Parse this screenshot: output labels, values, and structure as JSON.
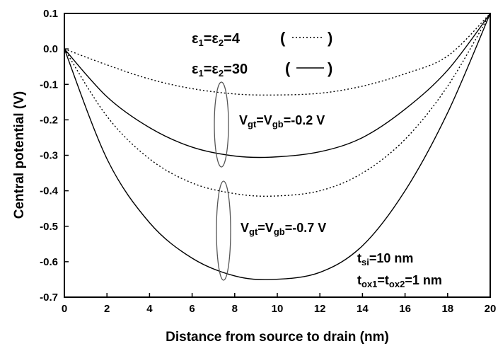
{
  "chart_data": {
    "type": "line",
    "title": "",
    "xlabel": "Distance from source to drain (nm)",
    "ylabel": "Central potential (V)",
    "xlim": [
      0,
      20
    ],
    "ylim": [
      -0.7,
      0.1
    ],
    "xticks": [
      "0",
      "2",
      "4",
      "6",
      "8",
      "10",
      "12",
      "14",
      "16",
      "18",
      "20"
    ],
    "yticks": [
      "0.1",
      "0.0",
      "-0.1",
      "-0.2",
      "-0.3",
      "-0.4",
      "-0.5",
      "-0.6",
      "-0.7"
    ],
    "grid": false,
    "series": [
      {
        "x": [
          0,
          2,
          4,
          6,
          8,
          9.8,
          12,
          14,
          16,
          18,
          20
        ],
        "values": [
          0.0,
          -0.045,
          -0.085,
          -0.112,
          -0.127,
          -0.13,
          -0.125,
          -0.105,
          -0.07,
          -0.02,
          0.1
        ],
        "style": "dotted"
      },
      {
        "x": [
          0,
          2,
          4,
          6,
          8,
          9.8,
          12,
          14,
          16,
          18,
          20
        ],
        "values": [
          0.0,
          -0.135,
          -0.222,
          -0.277,
          -0.302,
          -0.305,
          -0.29,
          -0.25,
          -0.17,
          -0.06,
          0.1
        ],
        "style": "solid"
      },
      {
        "x": [
          0,
          2,
          4,
          6,
          8,
          9.8,
          12,
          14,
          16,
          18,
          20
        ],
        "values": [
          0.0,
          -0.19,
          -0.31,
          -0.378,
          -0.408,
          -0.415,
          -0.4,
          -0.35,
          -0.255,
          -0.105,
          0.1
        ],
        "style": "dotted"
      },
      {
        "x": [
          0,
          2,
          4,
          6,
          8,
          9.8,
          12,
          14,
          16,
          18,
          20
        ],
        "values": [
          0.0,
          -0.31,
          -0.49,
          -0.59,
          -0.64,
          -0.65,
          -0.63,
          -0.555,
          -0.4,
          -0.18,
          0.1
        ],
        "style": "solid"
      }
    ],
    "annotations": {
      "legend_dotted": {
        "sym": "ε",
        "sub1": "1",
        "sub2": "2",
        "value": "=4"
      },
      "legend_solid": {
        "sym": "ε",
        "sub1": "1",
        "sub2": "2",
        "value": "=30"
      },
      "vg1": {
        "pre": "V",
        "sub_t": "gt",
        "mid": "=V",
        "sub_b": "gb",
        "value": "=-0.2 V"
      },
      "vg2": {
        "pre": "V",
        "sub_t": "gt",
        "mid": "=V",
        "sub_b": "gb",
        "value": "=-0.7 V"
      },
      "tsi": {
        "pre": "t",
        "sub": "si",
        "value": "=10 nm"
      },
      "tox": {
        "pre": "t",
        "sub1": "ox1",
        "mid": "=t",
        "sub2": "ox2",
        "value": "=1 nm"
      }
    }
  }
}
